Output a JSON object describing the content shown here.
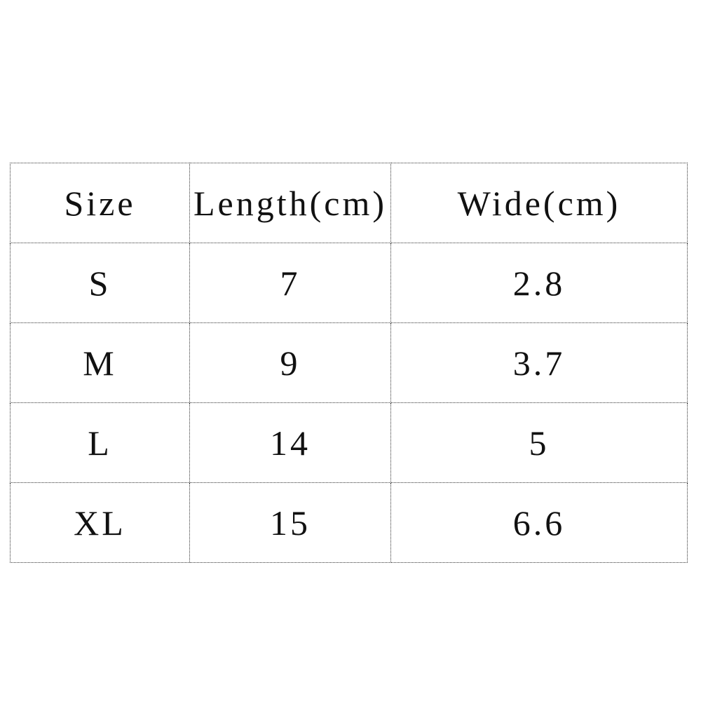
{
  "table": {
    "headers": [
      "Size",
      "Length(cm)",
      "Wide(cm)"
    ],
    "rows": [
      [
        "S",
        "7",
        "2.8"
      ],
      [
        "M",
        "9",
        "3.7"
      ],
      [
        "L",
        "14",
        "5"
      ],
      [
        "XL",
        "15",
        "6.6"
      ]
    ]
  }
}
